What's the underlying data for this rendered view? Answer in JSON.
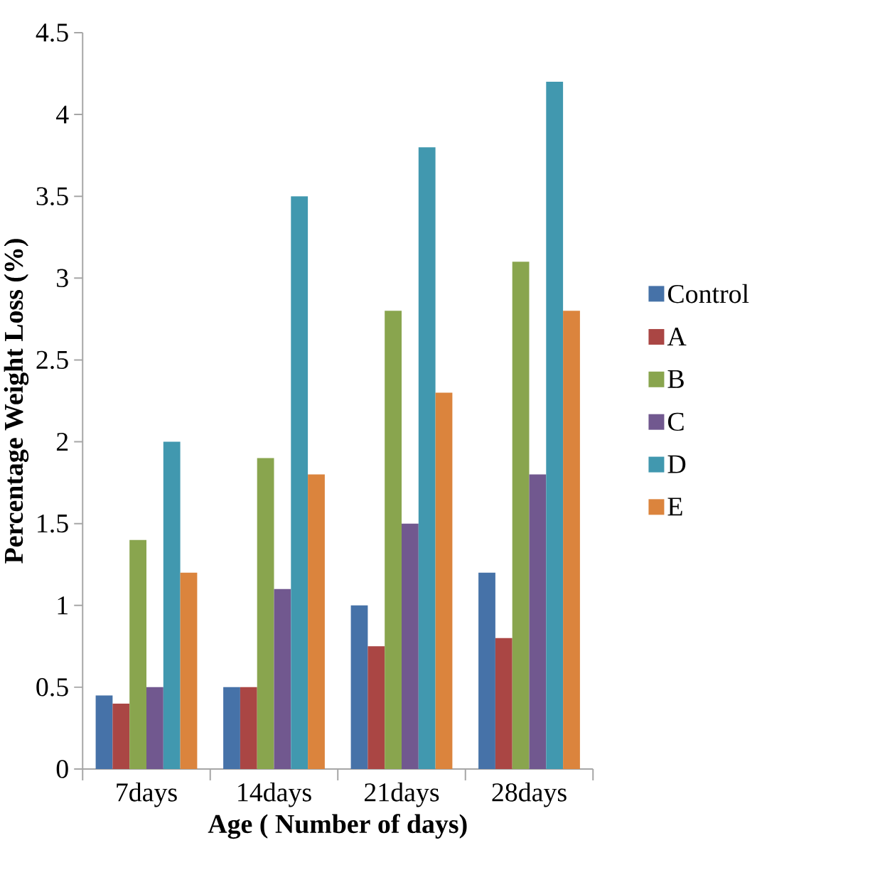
{
  "chart_data": {
    "type": "bar",
    "xlabel": "Age ( Number of days)",
    "ylabel": "Percentage Weight  Loss (%)",
    "categories": [
      "7days",
      "14days",
      "21days",
      "28days"
    ],
    "series": [
      {
        "name": "Control",
        "color": "#4672a8",
        "values": [
          0.45,
          0.5,
          1.0,
          1.2
        ]
      },
      {
        "name": "A",
        "color": "#aa4644",
        "values": [
          0.4,
          0.5,
          0.75,
          0.8
        ]
      },
      {
        "name": "B",
        "color": "#89a54e",
        "values": [
          1.4,
          1.9,
          2.8,
          3.1
        ]
      },
      {
        "name": "C",
        "color": "#71588f",
        "values": [
          0.5,
          1.1,
          1.5,
          1.8
        ]
      },
      {
        "name": "D",
        "color": "#4198af",
        "values": [
          2.0,
          3.5,
          3.8,
          4.2
        ]
      },
      {
        "name": "E",
        "color": "#db843d",
        "values": [
          1.2,
          1.8,
          2.3,
          2.8
        ]
      }
    ],
    "ylim": [
      0,
      4.5
    ],
    "yticks": [
      0,
      0.5,
      1,
      1.5,
      2,
      2.5,
      3,
      3.5,
      4,
      4.5
    ],
    "legend": "right",
    "grid": false
  }
}
